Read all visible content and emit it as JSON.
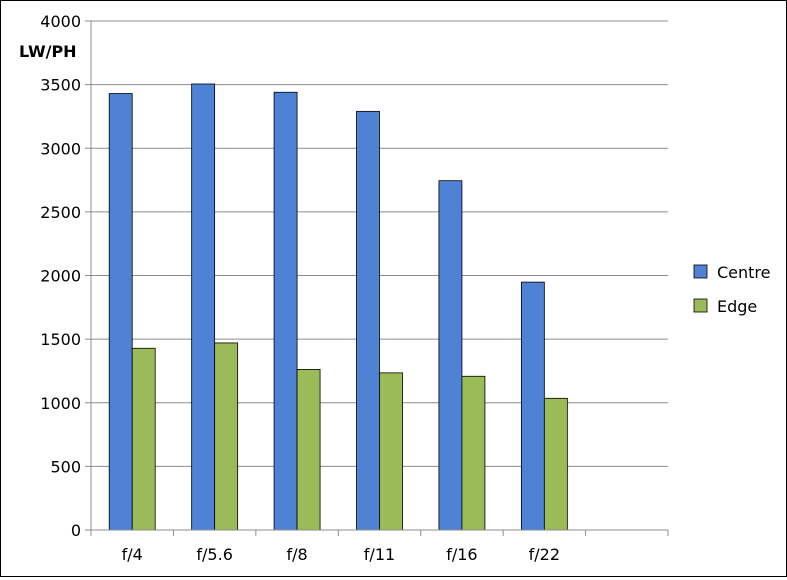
{
  "chart_data": {
    "type": "bar",
    "title": "",
    "xlabel": "",
    "ylabel": "LW/PH",
    "categories": [
      "f/4",
      "f/5.6",
      "f/8",
      "f/11",
      "f/16",
      "f/22",
      ""
    ],
    "series": [
      {
        "name": "Centre",
        "color": "#4f81d4",
        "values": [
          3430,
          3505,
          3440,
          3290,
          2745,
          1948,
          null
        ]
      },
      {
        "name": "Edge",
        "color": "#9bbb59",
        "values": [
          1428,
          1470,
          1262,
          1235,
          1208,
          1035,
          null
        ]
      }
    ],
    "ylim": [
      0,
      4000
    ],
    "yticks": [
      0,
      500,
      1000,
      1500,
      2000,
      2500,
      3000,
      3500,
      4000
    ],
    "grid": true,
    "legend": "right"
  }
}
